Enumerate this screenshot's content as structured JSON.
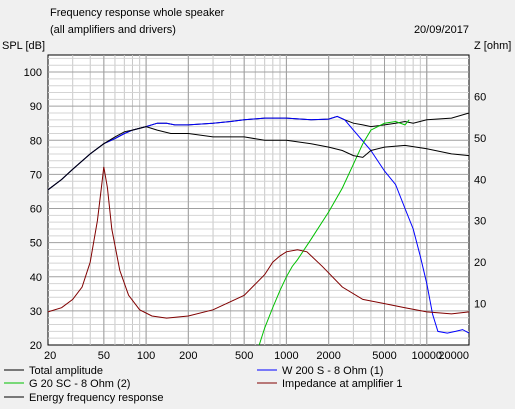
{
  "chart_data": {
    "type": "line",
    "title": "Frequency response whole speaker",
    "subtitle": "(all amplifiers and drivers)",
    "date": "20/09/2017",
    "ylabel": "SPL [dB]",
    "y2label": "Z [ohm]",
    "xscale": "log",
    "xlim": [
      20,
      20000
    ],
    "ylim": [
      20,
      105
    ],
    "y2lim": [
      0,
      70
    ],
    "grid": true,
    "x_ticks": [
      20,
      50,
      100,
      200,
      500,
      1000,
      2000,
      5000,
      10000,
      20000
    ],
    "x_tick_labels": [
      "20",
      "50",
      "100",
      "200",
      "500",
      "1000",
      "2000",
      "5000",
      "10000",
      "20000"
    ],
    "y_ticks": [
      20,
      30,
      40,
      50,
      60,
      70,
      80,
      90,
      100
    ],
    "y_tick_labels": [
      "20",
      "30",
      "40",
      "50",
      "60",
      "70",
      "80",
      "90",
      "100"
    ],
    "y2_ticks": [
      10,
      20,
      30,
      40,
      50,
      60
    ],
    "y2_tick_labels": [
      "10",
      "20",
      "30",
      "40",
      "50",
      "60"
    ],
    "legend": [
      {
        "label": "Total amplitude",
        "color": "#000000"
      },
      {
        "label": "W 200 S - 8 Ohm (1)",
        "color": "#0000ff"
      },
      {
        "label": "G 20 SC - 8 Ohm (2)",
        "color": "#00c000"
      },
      {
        "label": "Impedance at amplifier 1",
        "color": "#800000"
      },
      {
        "label": "Energy frequency response",
        "color": "#000000"
      }
    ],
    "series": [
      {
        "axis": "left",
        "color": "#000000",
        "points": [
          [
            20,
            65.5
          ],
          [
            25,
            68.5
          ],
          [
            30,
            71.5
          ],
          [
            40,
            76
          ],
          [
            50,
            79
          ],
          [
            60,
            80.5
          ],
          [
            70,
            82
          ],
          [
            80,
            83
          ],
          [
            100,
            84
          ],
          [
            120,
            85
          ],
          [
            140,
            85
          ],
          [
            160,
            84.5
          ],
          [
            200,
            84.5
          ],
          [
            300,
            85
          ],
          [
            400,
            85.5
          ],
          [
            500,
            86
          ],
          [
            700,
            86.5
          ],
          [
            1000,
            86.5
          ],
          [
            1500,
            86
          ],
          [
            2000,
            86.2
          ],
          [
            2300,
            87
          ],
          [
            2600,
            86
          ],
          [
            3000,
            85
          ],
          [
            3500,
            84.5
          ],
          [
            4000,
            84
          ],
          [
            5000,
            84.5
          ],
          [
            6000,
            85
          ],
          [
            7000,
            85.5
          ],
          [
            8000,
            85
          ],
          [
            10000,
            86
          ],
          [
            15000,
            86.5
          ],
          [
            20000,
            88
          ]
        ]
      },
      {
        "axis": "left",
        "color": "#0000ff",
        "points": [
          [
            20,
            65.5
          ],
          [
            25,
            68.5
          ],
          [
            30,
            71.5
          ],
          [
            40,
            76
          ],
          [
            50,
            79
          ],
          [
            60,
            80.5
          ],
          [
            70,
            82
          ],
          [
            80,
            83
          ],
          [
            100,
            84
          ],
          [
            120,
            85
          ],
          [
            140,
            85
          ],
          [
            160,
            84.5
          ],
          [
            200,
            84.5
          ],
          [
            300,
            85
          ],
          [
            400,
            85.5
          ],
          [
            500,
            86
          ],
          [
            700,
            86.5
          ],
          [
            1000,
            86.5
          ],
          [
            1500,
            86
          ],
          [
            2000,
            86.2
          ],
          [
            2300,
            87
          ],
          [
            2600,
            86
          ],
          [
            3000,
            83
          ],
          [
            4000,
            77
          ],
          [
            5000,
            71
          ],
          [
            6000,
            67
          ],
          [
            7000,
            60
          ],
          [
            8000,
            54
          ],
          [
            9000,
            46
          ],
          [
            10000,
            38
          ],
          [
            11000,
            29
          ],
          [
            12000,
            24
          ],
          [
            14000,
            23.5
          ],
          [
            16000,
            24
          ],
          [
            18000,
            24.5
          ],
          [
            20000,
            23.5
          ]
        ]
      },
      {
        "axis": "left",
        "color": "#00c000",
        "points": [
          [
            640,
            20
          ],
          [
            700,
            25
          ],
          [
            800,
            31
          ],
          [
            900,
            36
          ],
          [
            1000,
            40
          ],
          [
            1100,
            43
          ],
          [
            1200,
            45
          ],
          [
            1500,
            51
          ],
          [
            2000,
            59
          ],
          [
            2500,
            66
          ],
          [
            3000,
            73
          ],
          [
            3500,
            79
          ],
          [
            4000,
            83
          ],
          [
            5000,
            85
          ],
          [
            6000,
            85.5
          ],
          [
            7000,
            84.5
          ],
          [
            7500,
            86
          ]
        ]
      },
      {
        "axis": "right",
        "color": "#800000",
        "points": [
          [
            20,
            8
          ],
          [
            25,
            9
          ],
          [
            30,
            11
          ],
          [
            35,
            14
          ],
          [
            40,
            20
          ],
          [
            45,
            30
          ],
          [
            48,
            38
          ],
          [
            50,
            43
          ],
          [
            53,
            38
          ],
          [
            57,
            28
          ],
          [
            65,
            18
          ],
          [
            75,
            12
          ],
          [
            90,
            8.5
          ],
          [
            110,
            7
          ],
          [
            140,
            6.5
          ],
          [
            200,
            7
          ],
          [
            300,
            8.5
          ],
          [
            500,
            12
          ],
          [
            700,
            17
          ],
          [
            800,
            20
          ],
          [
            900,
            21.5
          ],
          [
            1000,
            22.5
          ],
          [
            1200,
            23
          ],
          [
            1400,
            22.5
          ],
          [
            1800,
            19
          ],
          [
            2500,
            14
          ],
          [
            3500,
            11
          ],
          [
            5000,
            10
          ],
          [
            7000,
            9
          ],
          [
            10000,
            8
          ],
          [
            15000,
            7.5
          ],
          [
            20000,
            8
          ]
        ]
      },
      {
        "axis": "left",
        "color": "#000000",
        "points": [
          [
            20,
            65.5
          ],
          [
            25,
            68.5
          ],
          [
            30,
            71.5
          ],
          [
            40,
            76
          ],
          [
            50,
            79
          ],
          [
            60,
            81
          ],
          [
            70,
            82.5
          ],
          [
            80,
            83
          ],
          [
            100,
            84
          ],
          [
            120,
            83
          ],
          [
            150,
            82
          ],
          [
            200,
            82
          ],
          [
            300,
            81
          ],
          [
            500,
            81
          ],
          [
            700,
            80
          ],
          [
            1000,
            80
          ],
          [
            1500,
            79
          ],
          [
            2000,
            78
          ],
          [
            2500,
            77
          ],
          [
            3000,
            75.5
          ],
          [
            3500,
            75
          ],
          [
            4000,
            77
          ],
          [
            5000,
            78
          ],
          [
            7000,
            78.5
          ],
          [
            10000,
            77.5
          ],
          [
            15000,
            76
          ],
          [
            20000,
            75.5
          ]
        ]
      }
    ]
  }
}
